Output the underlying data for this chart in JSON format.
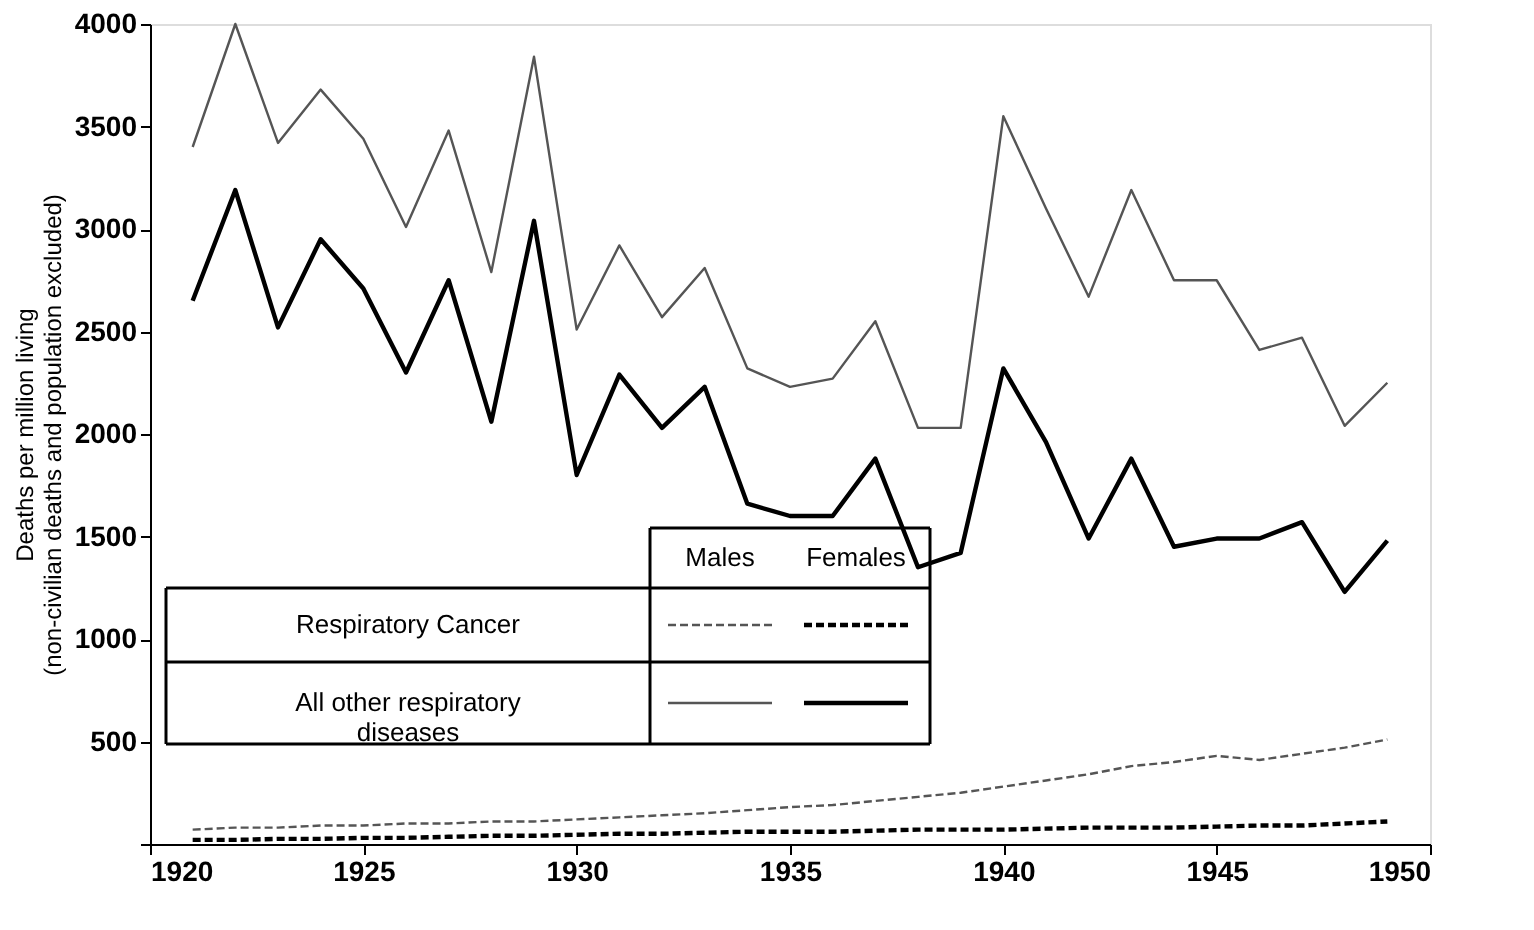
{
  "chart_data": {
    "type": "line",
    "ylabel": "Deaths per million living\n(non-civilian deaths and population excluded)",
    "x": [
      1921,
      1922,
      1923,
      1924,
      1925,
      1926,
      1927,
      1928,
      1929,
      1930,
      1931,
      1932,
      1933,
      1934,
      1935,
      1936,
      1937,
      1938,
      1939,
      1940,
      1941,
      1942,
      1943,
      1944,
      1945,
      1946,
      1947,
      1948,
      1949
    ],
    "series": [
      {
        "color": "#555555",
        "line_style": "dashed",
        "values": [
          70,
          80,
          80,
          90,
          90,
          100,
          100,
          110,
          110,
          120,
          130,
          140,
          150,
          165,
          180,
          190,
          210,
          230,
          250,
          280,
          310,
          340,
          380,
          400,
          430,
          410,
          440,
          470,
          510
        ]
      },
      {
        "color": "#000000",
        "line_style": "dashed",
        "values": [
          20,
          20,
          25,
          25,
          30,
          30,
          35,
          40,
          40,
          45,
          50,
          50,
          55,
          60,
          60,
          60,
          65,
          70,
          70,
          70,
          75,
          80,
          80,
          80,
          85,
          90,
          90,
          100,
          110
        ]
      },
      {
        "color": "#555555",
        "line_style": "solid",
        "values": [
          3400,
          4000,
          3420,
          3680,
          3440,
          3010,
          3480,
          2790,
          3840,
          2510,
          2920,
          2570,
          2810,
          2320,
          2230,
          2270,
          2550,
          2030,
          2030,
          3550,
          3100,
          2670,
          3190,
          2750,
          2750,
          2410,
          2470,
          2040,
          2250
        ]
      },
      {
        "color": "#000000",
        "line_style": "solid",
        "values": [
          2650,
          3190,
          2520,
          2950,
          2710,
          2300,
          2750,
          2060,
          3040,
          1800,
          2290,
          2030,
          2230,
          1660,
          1600,
          1600,
          1880,
          1350,
          1420,
          2320,
          1960,
          1490,
          1880,
          1450,
          1490,
          1490,
          1570,
          1230,
          1480
        ]
      }
    ],
    "annotations": [
      "Males",
      "Females",
      "Respiratory Cancer",
      "All other respiratory diseases"
    ],
    "xlim": [
      1920,
      1950
    ],
    "xticks": [
      1920,
      1925,
      1930,
      1935,
      1940,
      1945,
      1950
    ],
    "ylim": [
      0,
      4000
    ],
    "yticks": [
      {
        "value": 0,
        "label": null
      },
      500,
      1000,
      1500,
      2000,
      2500,
      3000,
      3500,
      4000
    ],
    "grid": false
  }
}
